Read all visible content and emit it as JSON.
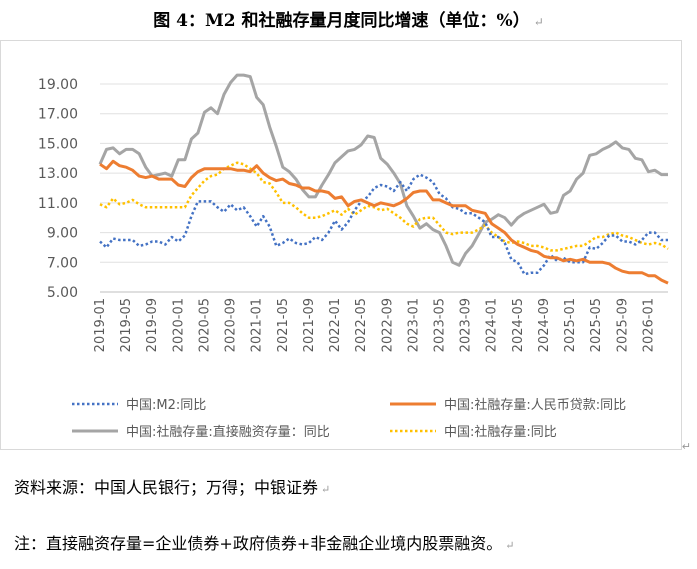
{
  "title": "图 4：M2 和社融存量月度同比增速（单位：%）",
  "source_note": "资料来源：中国人民银行；万得；中银证券",
  "footnote": "注：直接融资存量=企业债券+政府债券+非金融企业境内股票融资。",
  "chart_data": {
    "type": "line",
    "ylim": [
      5.0,
      20.0
    ],
    "yticks": [
      "19.00",
      "17.00",
      "15.00",
      "13.00",
      "11.00",
      "9.00",
      "7.00",
      "5.00"
    ],
    "xticks": [
      "2019-01",
      "2019-05",
      "2019-09",
      "2020-01",
      "2020-05",
      "2020-09",
      "2021-01",
      "2021-05",
      "2021-09",
      "2022-01",
      "2022-05",
      "2022-09",
      "2023-01",
      "2023-05",
      "2023-09",
      "2024-01",
      "2024-05",
      "2024-09",
      "2025-01",
      "2025-05",
      "2025-09",
      "2026-01"
    ],
    "x_start": "2019-01",
    "x_count": 88,
    "legend_position": "bottom",
    "series": [
      {
        "name": "中国:M2:同比",
        "color": "#4472c4",
        "style": "dotted",
        "values": [
          8.4,
          8.0,
          8.6,
          8.5,
          8.5,
          8.5,
          8.1,
          8.2,
          8.4,
          8.4,
          8.2,
          8.7,
          8.4,
          8.8,
          10.1,
          11.1,
          11.1,
          11.1,
          10.7,
          10.4,
          10.9,
          10.5,
          10.7,
          10.1,
          9.4,
          10.1,
          9.4,
          8.1,
          8.3,
          8.6,
          8.3,
          8.2,
          8.3,
          8.7,
          8.5,
          9.0,
          9.8,
          9.2,
          9.7,
          10.5,
          11.1,
          11.4,
          12.0,
          12.2,
          12.1,
          11.8,
          12.4,
          11.8,
          12.6,
          12.9,
          12.7,
          12.4,
          11.6,
          11.3,
          10.7,
          10.6,
          10.3,
          10.3,
          10.0,
          9.7,
          8.7,
          8.7,
          8.3,
          7.2,
          7.0,
          6.2,
          6.3,
          6.3,
          6.8,
          7.5,
          7.1,
          7.3,
          7.0,
          7.0,
          7.0,
          8.0,
          7.9,
          8.3,
          8.8,
          8.8,
          8.4,
          8.4,
          8.2,
          8.5,
          9.0,
          9.0,
          8.5,
          8.5
        ]
      },
      {
        "name": "中国:社融存量:人民币贷款:同比",
        "color": "#ed7d31",
        "style": "solid",
        "values": [
          13.6,
          13.3,
          13.8,
          13.5,
          13.4,
          13.2,
          12.8,
          12.7,
          12.8,
          12.6,
          12.6,
          12.6,
          12.2,
          12.1,
          12.7,
          13.1,
          13.3,
          13.3,
          13.3,
          13.3,
          13.3,
          13.2,
          13.2,
          13.1,
          13.5,
          13.0,
          12.7,
          12.5,
          12.6,
          12.3,
          12.2,
          12.0,
          12.0,
          11.8,
          11.8,
          11.7,
          11.3,
          11.4,
          10.8,
          11.1,
          11.2,
          11.0,
          10.8,
          11.0,
          10.9,
          10.8,
          11.0,
          11.3,
          11.7,
          11.8,
          11.8,
          11.2,
          11.2,
          11.0,
          10.8,
          10.8,
          10.8,
          10.5,
          10.4,
          10.3,
          9.6,
          9.3,
          9.0,
          8.5,
          8.2,
          8.0,
          7.8,
          7.7,
          7.4,
          7.3,
          7.3,
          7.1,
          7.2,
          7.1,
          7.2,
          7.0,
          7.0,
          7.0,
          6.9,
          6.6,
          6.4,
          6.3,
          6.3,
          6.3,
          6.1,
          6.1,
          5.8,
          5.6
        ]
      },
      {
        "name": "中国:社融存量:直接融资存量：同比",
        "color": "#a5a5a5",
        "style": "solid",
        "values": [
          13.6,
          14.6,
          14.7,
          14.3,
          14.6,
          14.6,
          14.3,
          13.4,
          12.8,
          12.9,
          13.0,
          12.8,
          13.9,
          13.9,
          15.3,
          15.7,
          17.1,
          17.4,
          17.0,
          18.3,
          19.1,
          19.6,
          19.6,
          19.5,
          18.1,
          17.6,
          16.1,
          14.8,
          13.4,
          13.1,
          12.6,
          11.9,
          11.4,
          11.4,
          12.2,
          12.9,
          13.7,
          14.1,
          14.5,
          14.6,
          14.9,
          15.5,
          15.4,
          14.0,
          13.6,
          13.0,
          12.3,
          10.8,
          10.1,
          9.3,
          9.6,
          9.2,
          9.0,
          8.1,
          7.0,
          6.8,
          7.6,
          8.1,
          8.9,
          9.7,
          9.9,
          10.2,
          10.0,
          9.5,
          10.0,
          10.3,
          10.5,
          10.7,
          10.9,
          10.3,
          10.4,
          11.5,
          11.8,
          12.6,
          13.0,
          14.2,
          14.3,
          14.6,
          14.8,
          15.1,
          14.7,
          14.6,
          14.0,
          13.9,
          13.1,
          13.2,
          12.9,
          12.9
        ]
      },
      {
        "name": "中国:社融存量:同比",
        "color": "#ffc000",
        "style": "dotted",
        "values": [
          10.9,
          10.7,
          11.3,
          10.9,
          11.0,
          11.2,
          10.9,
          10.7,
          10.7,
          10.7,
          10.7,
          10.7,
          10.7,
          10.7,
          11.5,
          12.0,
          12.5,
          12.8,
          12.9,
          13.3,
          13.5,
          13.7,
          13.6,
          13.3,
          13.0,
          12.4,
          12.3,
          11.7,
          11.0,
          11.0,
          10.7,
          10.3,
          10.0,
          10.0,
          10.1,
          10.3,
          10.5,
          10.2,
          10.6,
          10.2,
          10.5,
          10.8,
          10.7,
          10.5,
          10.6,
          10.3,
          10.0,
          9.6,
          9.4,
          9.9,
          10.0,
          10.0,
          9.5,
          9.0,
          8.9,
          9.0,
          9.0,
          9.0,
          9.2,
          9.5,
          9.0,
          8.7,
          8.4,
          8.3,
          8.4,
          8.3,
          8.1,
          8.1,
          8.0,
          7.8,
          7.8,
          7.9,
          8.0,
          8.1,
          8.1,
          8.4,
          8.7,
          8.7,
          8.9,
          9.0,
          8.8,
          8.7,
          8.5,
          8.3,
          8.2,
          8.3,
          8.2,
          7.9
        ]
      }
    ]
  }
}
